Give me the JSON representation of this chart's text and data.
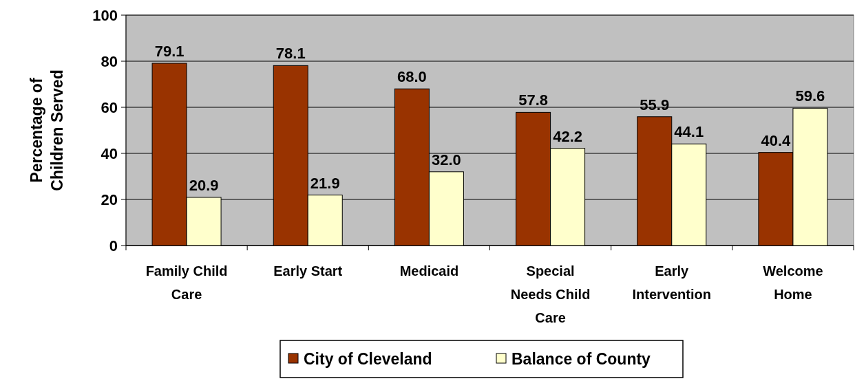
{
  "chart_data": {
    "type": "bar",
    "ylabel": "Percentage of\nChildren Served",
    "categories": [
      "Family Child\nCare",
      "Early Start",
      "Medicaid",
      "Special\nNeeds Child\nCare",
      "Early\nIntervention",
      "Welcome\nHome"
    ],
    "series": [
      {
        "name": "City of Cleveland",
        "color": "#993300",
        "values": [
          79.1,
          78.1,
          68.0,
          57.8,
          55.9,
          40.4
        ]
      },
      {
        "name": "Balance of County",
        "color": "#ffffcc",
        "values": [
          20.9,
          21.9,
          32.0,
          42.2,
          44.1,
          59.6
        ]
      }
    ],
    "value_labels": [
      [
        "79.1",
        "78.1",
        "68.0",
        "57.8",
        "55.9",
        "40.4"
      ],
      [
        "20.9",
        "21.9",
        "32.0",
        "42.2",
        "44.1",
        "59.6"
      ]
    ],
    "ylim": [
      0,
      100
    ],
    "yticks": [
      0,
      20,
      40,
      60,
      80,
      100
    ],
    "grid": "y",
    "legend": "bottom"
  }
}
